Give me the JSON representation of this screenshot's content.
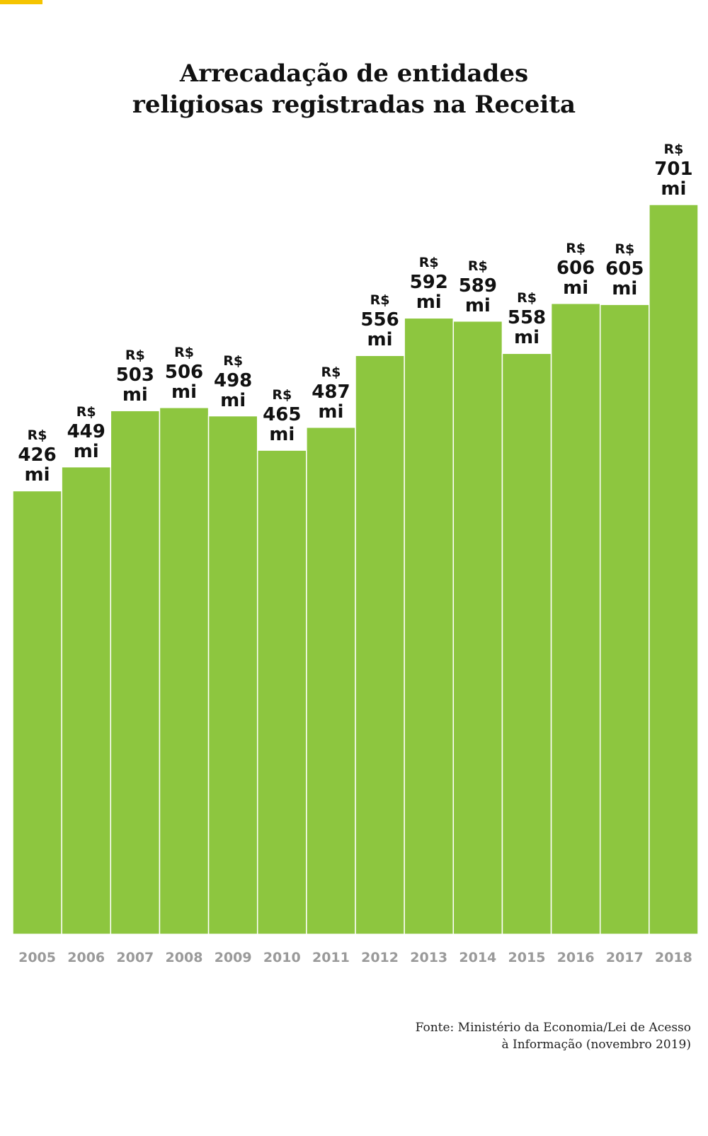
{
  "chart_data": {
    "type": "bar",
    "title": "Arrecadação de entidades religiosas registradas na Receita",
    "categories": [
      "2005",
      "2006",
      "2007",
      "2008",
      "2009",
      "2010",
      "2011",
      "2012",
      "2013",
      "2014",
      "2015",
      "2016",
      "2017",
      "2018"
    ],
    "values": [
      426,
      449,
      503,
      506,
      498,
      465,
      487,
      556,
      592,
      589,
      558,
      606,
      605,
      701
    ],
    "value_labels": [
      "R$\n426\nmi",
      "R$\n449\nmi",
      "R$\n503\nmi",
      "R$\n506\nmi",
      "R$\n498\nmi",
      "R$\n465\nmi",
      "R$\n487\nmi",
      "R$\n556\nmi",
      "R$\n592\nmi",
      "R$\n589\nmi",
      "R$\n558\nmi",
      "R$\n606\nmi",
      "R$\n605\nmi",
      "R$\n701\nmi"
    ],
    "color": "#8dc63f",
    "source": "Fonte: Ministério da Economia/Lei de Acesso\nà Informação (novembro 2019)"
  }
}
